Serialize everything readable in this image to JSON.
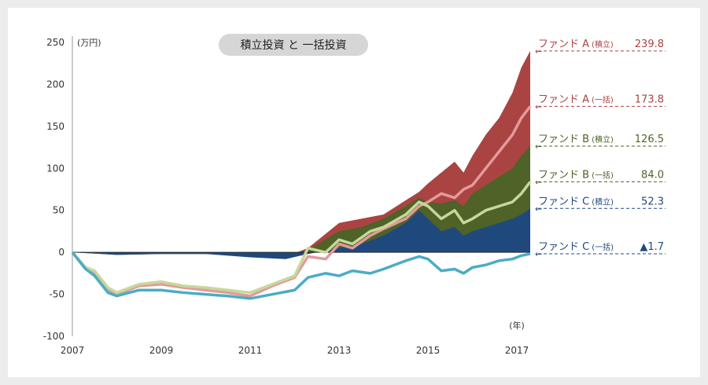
{
  "chart_data": {
    "type": "area",
    "title": "積立投資 と 一括投資",
    "y_unit": "(万円)",
    "x_unit": "(年)",
    "ylim": [
      -100,
      250
    ],
    "y_ticks": [
      "250",
      "200",
      "150",
      "100",
      "50",
      "0",
      "-50",
      "-100"
    ],
    "x_ticks": [
      "2007",
      "2009",
      "2011",
      "2013",
      "2015",
      "2017"
    ],
    "x_range": [
      2007.0,
      2017.3
    ],
    "series": [
      {
        "name": "ファンド A",
        "sub": "(積立)",
        "value_label": "239.8",
        "color": "#a94442",
        "kind": "area",
        "x": [
          2007.0,
          2008.0,
          2009.0,
          2010.0,
          2011.0,
          2012.0,
          2012.3,
          2013.0,
          2013.5,
          2014.0,
          2014.5,
          2014.8,
          2015.0,
          2015.3,
          2015.6,
          2015.8,
          2016.0,
          2016.3,
          2016.6,
          2016.9,
          2017.1,
          2017.3
        ],
        "y": [
          0,
          -2,
          -1,
          -1,
          -2,
          -1,
          5,
          35,
          40,
          45,
          62,
          72,
          82,
          95,
          108,
          95,
          115,
          140,
          160,
          190,
          220,
          239.8
        ]
      },
      {
        "name": "ファンド B",
        "sub": "(積立)",
        "value_label": "126.5",
        "color": "#4f6228",
        "kind": "area",
        "x": [
          2007.0,
          2008.0,
          2009.0,
          2010.0,
          2011.0,
          2012.0,
          2012.3,
          2013.0,
          2013.5,
          2014.0,
          2014.5,
          2014.8,
          2015.0,
          2015.3,
          2015.6,
          2015.8,
          2016.0,
          2016.3,
          2016.6,
          2016.9,
          2017.1,
          2017.3
        ],
        "y": [
          0,
          -3,
          -2,
          -2,
          -3,
          -2,
          3,
          25,
          30,
          40,
          55,
          65,
          60,
          58,
          62,
          55,
          70,
          80,
          90,
          100,
          115,
          126.5
        ]
      },
      {
        "name": "ファンド C",
        "sub": "(積立)",
        "value_label": "52.3",
        "color": "#1f497d",
        "kind": "area",
        "x": [
          2007.0,
          2008.0,
          2009.0,
          2010.0,
          2011.0,
          2011.8,
          2012.3,
          2013.0,
          2013.5,
          2014.0,
          2014.5,
          2014.8,
          2015.0,
          2015.3,
          2015.6,
          2015.8,
          2016.0,
          2016.3,
          2016.6,
          2016.9,
          2017.1,
          2017.3
        ],
        "y": [
          0,
          -3,
          -2,
          -2,
          -6,
          -8,
          -2,
          5,
          10,
          20,
          35,
          50,
          40,
          25,
          30,
          20,
          25,
          30,
          35,
          40,
          45,
          52.3
        ]
      },
      {
        "name": "ファンド A",
        "sub": "(一括)",
        "value_label": "173.8",
        "color": "#e39a9a",
        "kind": "line",
        "x": [
          2007.0,
          2007.3,
          2007.5,
          2007.8,
          2008.0,
          2008.5,
          2009.0,
          2009.5,
          2010.0,
          2010.5,
          2011.0,
          2011.5,
          2012.0,
          2012.3,
          2012.7,
          2013.0,
          2013.3,
          2013.7,
          2014.0,
          2014.5,
          2014.8,
          2015.0,
          2015.3,
          2015.6,
          2015.8,
          2016.0,
          2016.3,
          2016.6,
          2016.9,
          2017.1,
          2017.3
        ],
        "y": [
          0,
          -20,
          -25,
          -45,
          -50,
          -40,
          -38,
          -42,
          -45,
          -48,
          -52,
          -40,
          -30,
          -5,
          -8,
          10,
          5,
          20,
          28,
          40,
          55,
          60,
          70,
          65,
          75,
          80,
          100,
          120,
          140,
          160,
          173.8
        ]
      },
      {
        "name": "ファンド B",
        "sub": "(一括)",
        "value_label": "84.0",
        "color": "#c6d99a",
        "kind": "line",
        "x": [
          2007.0,
          2007.3,
          2007.5,
          2007.8,
          2008.0,
          2008.5,
          2009.0,
          2009.5,
          2010.0,
          2010.5,
          2011.0,
          2011.5,
          2012.0,
          2012.3,
          2012.7,
          2013.0,
          2013.3,
          2013.7,
          2014.0,
          2014.5,
          2014.8,
          2015.0,
          2015.3,
          2015.6,
          2015.8,
          2016.0,
          2016.3,
          2016.6,
          2016.9,
          2017.1,
          2017.3
        ],
        "y": [
          0,
          -18,
          -22,
          -42,
          -48,
          -38,
          -35,
          -40,
          -42,
          -45,
          -48,
          -38,
          -28,
          5,
          0,
          15,
          10,
          25,
          30,
          45,
          60,
          55,
          40,
          50,
          35,
          40,
          50,
          55,
          60,
          70,
          84.0
        ]
      },
      {
        "name": "ファンド C",
        "sub": "(一括)",
        "value_label": "▲1.7",
        "color": "#4bacc6",
        "kind": "line",
        "x": [
          2007.0,
          2007.3,
          2007.5,
          2007.8,
          2008.0,
          2008.5,
          2009.0,
          2009.5,
          2010.0,
          2010.5,
          2011.0,
          2011.5,
          2012.0,
          2012.3,
          2012.7,
          2013.0,
          2013.3,
          2013.7,
          2014.0,
          2014.5,
          2014.8,
          2015.0,
          2015.3,
          2015.6,
          2015.8,
          2016.0,
          2016.3,
          2016.6,
          2016.9,
          2017.1,
          2017.3
        ],
        "y": [
          0,
          -20,
          -28,
          -48,
          -52,
          -45,
          -45,
          -48,
          -50,
          -52,
          -55,
          -50,
          -45,
          -30,
          -25,
          -28,
          -22,
          -25,
          -20,
          -10,
          -5,
          -8,
          -22,
          -20,
          -25,
          -18,
          -15,
          -10,
          -8,
          -4,
          -1.7
        ]
      }
    ]
  }
}
